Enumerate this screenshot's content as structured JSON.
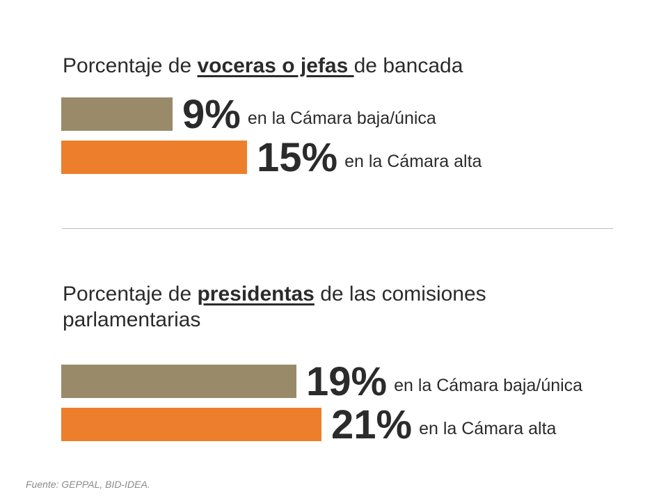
{
  "chart_data": [
    {
      "type": "bar",
      "title_parts": {
        "before": "Porcentaje de ",
        "keyword": "voceras o jefas ",
        "after": "de bancada"
      },
      "categories": [
        "en la Cámara baja/única",
        "en la Cámara alta"
      ],
      "values": [
        9,
        15
      ],
      "value_labels": [
        "9%",
        "15%"
      ],
      "colors": [
        "#998b69",
        "#ed7f2c"
      ],
      "unit": "%"
    },
    {
      "type": "bar",
      "title_parts": {
        "before": "Porcentaje de ",
        "keyword": "presidentas",
        "after": " de las comisiones parlamentarias"
      },
      "categories": [
        "en la Cámara baja/única",
        "en la Cámara alta"
      ],
      "values": [
        19,
        21
      ],
      "value_labels": [
        "19%",
        "21%"
      ],
      "colors": [
        "#998b69",
        "#ed7f2c"
      ],
      "unit": "%"
    }
  ],
  "source": "Fuente: GEPPAL, BID-IDEA."
}
